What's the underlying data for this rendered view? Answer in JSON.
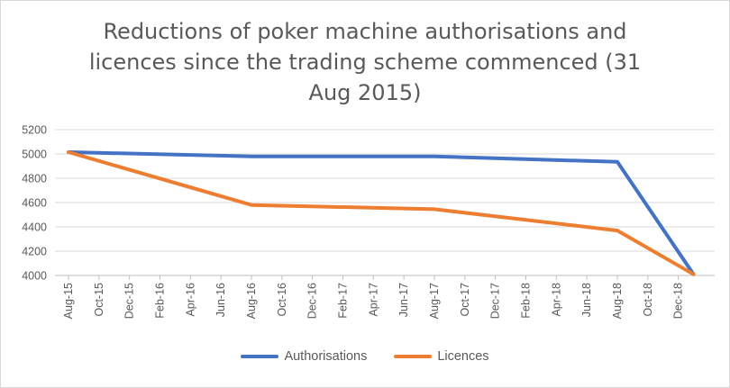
{
  "chart_data": {
    "type": "line",
    "title": "Reductions of poker machine authorisations and licences since the trading scheme commenced (31 Aug 2015)",
    "xlabel": "",
    "ylabel": "",
    "ylim": [
      4000,
      5200
    ],
    "yticks": [
      4000,
      4200,
      4400,
      4600,
      4800,
      5000,
      5200
    ],
    "grid": true,
    "legend_position": "bottom",
    "categories": [
      "Aug-15",
      "Oct-15",
      "Dec-15",
      "Feb-16",
      "Apr-16",
      "Jun-16",
      "Aug-16",
      "Oct-16",
      "Dec-16",
      "Feb-17",
      "Apr-17",
      "Jun-17",
      "Aug-17",
      "Oct-17",
      "Dec-17",
      "Feb-18",
      "Apr-18",
      "Jun-18",
      "Aug-18",
      "Oct-18",
      "Dec-18"
    ],
    "series": [
      {
        "name": "Authorisations",
        "color": "#4472c4",
        "points": [
          [
            "Aug-15",
            5015
          ],
          [
            "Aug-16",
            4980
          ],
          [
            "Aug-17",
            4980
          ],
          [
            "Aug-18",
            4935
          ],
          [
            "Jan-19",
            4010
          ]
        ]
      },
      {
        "name": "Licences",
        "color": "#ed7d31",
        "points": [
          [
            "Aug-15",
            5015
          ],
          [
            "Aug-16",
            4580
          ],
          [
            "Aug-17",
            4545
          ],
          [
            "Aug-18",
            4370
          ],
          [
            "Jan-19",
            4010
          ]
        ]
      }
    ]
  }
}
